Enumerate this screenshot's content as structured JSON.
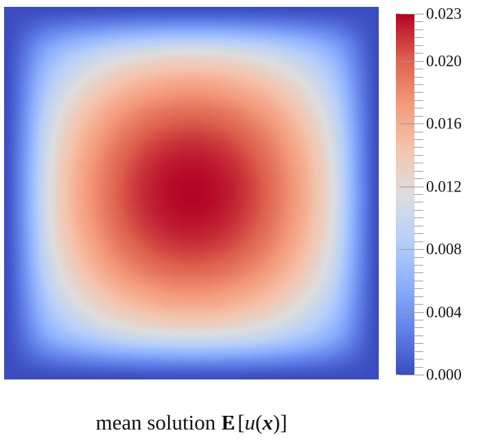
{
  "figure": {
    "background": "#ffffff"
  },
  "caption": {
    "full_text": "mean solution 𝔼[u(𝒙)]",
    "prefix": "mean solution",
    "expectation_symbol": "E",
    "open_bracket": "[",
    "u_symbol": "u",
    "open_paren": "(",
    "x_symbol": "x",
    "close_paren": ")",
    "close_bracket": "]"
  },
  "chart_data": {
    "type": "heatmap",
    "title": "mean solution 𝔼[u(𝒙)]",
    "x_range": [
      0,
      1
    ],
    "y_range": [
      0,
      1
    ],
    "value_range": [
      0,
      0.023
    ],
    "grid": "off",
    "description": "Smooth bump field, zero on the square boundary, maximum 0.023 at the center (mean PDE solution on the unit square).",
    "colormap_name": "coolwarm",
    "colormap_stops": [
      {
        "t": 0.0,
        "rgb": [
          59,
          76,
          192
        ]
      },
      {
        "t": 0.125,
        "rgb": [
          98,
          130,
          234
        ]
      },
      {
        "t": 0.25,
        "rgb": [
          141,
          176,
          254
        ]
      },
      {
        "t": 0.375,
        "rgb": [
          184,
          208,
          249
        ]
      },
      {
        "t": 0.5,
        "rgb": [
          221,
          221,
          221
        ]
      },
      {
        "t": 0.625,
        "rgb": [
          245,
          196,
          173
        ]
      },
      {
        "t": 0.75,
        "rgb": [
          244,
          154,
          123
        ]
      },
      {
        "t": 0.875,
        "rgb": [
          222,
          96,
          77
        ]
      },
      {
        "t": 1.0,
        "rgb": [
          180,
          4,
          38
        ]
      }
    ],
    "grid_x": [
      0,
      0.125,
      0.25,
      0.375,
      0.5,
      0.625,
      0.75,
      0.875,
      1
    ],
    "grid_y": [
      0,
      0.125,
      0.25,
      0.375,
      0.5,
      0.625,
      0.75,
      0.875,
      1
    ],
    "values": [
      [
        0,
        0,
        0,
        0,
        0,
        0,
        0,
        0,
        0
      ],
      [
        0,
        0.00613,
        0.00943,
        0.01127,
        0.01187,
        0.01127,
        0.00943,
        0.00613,
        0
      ],
      [
        0,
        0.00943,
        0.01452,
        0.01735,
        0.01827,
        0.01735,
        0.01452,
        0.00943,
        0
      ],
      [
        0,
        0.01127,
        0.01735,
        0.02074,
        0.02184,
        0.02074,
        0.01735,
        0.01127,
        0
      ],
      [
        0,
        0.01187,
        0.01827,
        0.02184,
        0.023,
        0.02184,
        0.01827,
        0.01187,
        0
      ],
      [
        0,
        0.01127,
        0.01735,
        0.02074,
        0.02184,
        0.02074,
        0.01735,
        0.01127,
        0
      ],
      [
        0,
        0.00943,
        0.01452,
        0.01735,
        0.01827,
        0.01735,
        0.01452,
        0.00943,
        0
      ],
      [
        0,
        0.00613,
        0.00943,
        0.01127,
        0.01187,
        0.01127,
        0.00943,
        0.00613,
        0
      ],
      [
        0,
        0,
        0,
        0,
        0,
        0,
        0,
        0,
        0
      ]
    ],
    "colorbar": {
      "orientation": "vertical",
      "position": "right",
      "vmin": 0,
      "vmax": 0.023,
      "major_ticks": [
        {
          "value": 0.023,
          "label": "0.023"
        },
        {
          "value": 0.02,
          "label": "0.020"
        },
        {
          "value": 0.016,
          "label": "0.016"
        },
        {
          "value": 0.012,
          "label": "0.012"
        },
        {
          "value": 0.008,
          "label": "0.008"
        },
        {
          "value": 0.004,
          "label": "0.004"
        },
        {
          "value": 0.0,
          "label": "0.000"
        }
      ],
      "minor_tick_step": 0.0005
    }
  }
}
